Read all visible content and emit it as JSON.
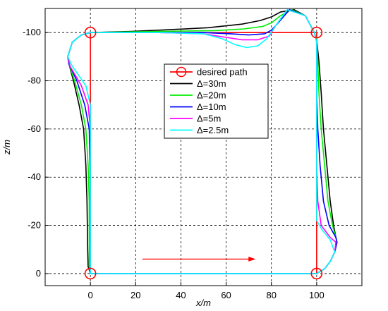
{
  "chart_data": {
    "type": "line",
    "xlabel": "x/m",
    "ylabel": "z/m",
    "xlim": [
      -20,
      120
    ],
    "ylim": [
      -5,
      110
    ],
    "y_axis_display": "inverted-negative",
    "x_ticks": [
      0,
      20,
      40,
      60,
      80,
      100
    ],
    "y_ticks": [
      0,
      20,
      40,
      60,
      80,
      100
    ],
    "x_tick_labels": [
      "0",
      "20",
      "40",
      "60",
      "80",
      "100"
    ],
    "y_tick_labels": [
      "0",
      "-20",
      "-40",
      "-60",
      "-80",
      "-100"
    ],
    "grid": true,
    "legend_position": "center",
    "desired_path": {
      "name": "desired path",
      "color": "#ff0000",
      "marker": "circle",
      "points": [
        [
          0,
          0
        ],
        [
          0,
          100
        ],
        [
          100,
          100
        ],
        [
          100,
          0
        ]
      ]
    },
    "direction_arrow": {
      "from": [
        23,
        6
      ],
      "to": [
        73,
        6
      ],
      "color": "#ff0000"
    },
    "series": [
      {
        "name": "Δ=30m",
        "color": "#000000",
        "points": [
          [
            0,
            100
          ],
          [
            18,
            100.5
          ],
          [
            35,
            101.2
          ],
          [
            52,
            102
          ],
          [
            67,
            103.5
          ],
          [
            75,
            105
          ],
          [
            80,
            106.5
          ],
          [
            84,
            108.5
          ],
          [
            90,
            109.5
          ],
          [
            95,
            107
          ],
          [
            99,
            100
          ],
          [
            100,
            97
          ],
          [
            101,
            88
          ],
          [
            102,
            75
          ],
          [
            103,
            60
          ],
          [
            104.5,
            45
          ],
          [
            106,
            30
          ],
          [
            107.5,
            20
          ],
          [
            108.5,
            15
          ],
          [
            109,
            13
          ],
          [
            108,
            9
          ],
          [
            106,
            5
          ],
          [
            103.5,
            2
          ],
          [
            100,
            0
          ],
          [
            50,
            0
          ],
          [
            0,
            0
          ],
          [
            -1,
            3
          ],
          [
            -1.2,
            10
          ],
          [
            -1.5,
            30
          ],
          [
            -2,
            45
          ],
          [
            -3,
            60
          ],
          [
            -5,
            70
          ],
          [
            -7.5,
            80
          ],
          [
            -9.5,
            87
          ],
          [
            -10,
            90
          ],
          [
            -8,
            96
          ],
          [
            -4,
            99
          ],
          [
            0,
            100
          ]
        ]
      },
      {
        "name": "Δ=20m",
        "color": "#00ee00",
        "points": [
          [
            0,
            100
          ],
          [
            20,
            100.3
          ],
          [
            40,
            100.6
          ],
          [
            55,
            100.8
          ],
          [
            68,
            101.5
          ],
          [
            76,
            102.5
          ],
          [
            80,
            104
          ],
          [
            84,
            107
          ],
          [
            89,
            109.5
          ],
          [
            95,
            107
          ],
          [
            99,
            100
          ],
          [
            100,
            97
          ],
          [
            100.5,
            88
          ],
          [
            101,
            75
          ],
          [
            102,
            60
          ],
          [
            103.5,
            45
          ],
          [
            105,
            30
          ],
          [
            107,
            20
          ],
          [
            108.5,
            15
          ],
          [
            109,
            13
          ],
          [
            108,
            9
          ],
          [
            106,
            5
          ],
          [
            103.5,
            2
          ],
          [
            100,
            0
          ],
          [
            50,
            0
          ],
          [
            0,
            0
          ],
          [
            -0.5,
            3
          ],
          [
            -0.5,
            10
          ],
          [
            -0.5,
            30
          ],
          [
            -1,
            45
          ],
          [
            -2,
            60
          ],
          [
            -4,
            70
          ],
          [
            -7,
            80
          ],
          [
            -9.5,
            87
          ],
          [
            -10,
            90
          ],
          [
            -8,
            96
          ],
          [
            -4,
            99
          ],
          [
            0,
            100
          ]
        ]
      },
      {
        "name": "Δ=10m",
        "color": "#0000ff",
        "points": [
          [
            0,
            100
          ],
          [
            30,
            100
          ],
          [
            50,
            100
          ],
          [
            62,
            99.5
          ],
          [
            70,
            99
          ],
          [
            77,
            99.5
          ],
          [
            80,
            101
          ],
          [
            83,
            104
          ],
          [
            88,
            109.5
          ],
          [
            95,
            107
          ],
          [
            99,
            100
          ],
          [
            100,
            96
          ],
          [
            100,
            88
          ],
          [
            100,
            75
          ],
          [
            100.5,
            60
          ],
          [
            101.5,
            45
          ],
          [
            103,
            30
          ],
          [
            105.5,
            20
          ],
          [
            108.5,
            15
          ],
          [
            109,
            13
          ],
          [
            108,
            9
          ],
          [
            106,
            5
          ],
          [
            103.5,
            2
          ],
          [
            100,
            0
          ],
          [
            50,
            0
          ],
          [
            0,
            0
          ],
          [
            0,
            3
          ],
          [
            0,
            10
          ],
          [
            0,
            30
          ],
          [
            -0.2,
            45
          ],
          [
            -0.5,
            60
          ],
          [
            -2.5,
            70
          ],
          [
            -6,
            80
          ],
          [
            -9.5,
            87
          ],
          [
            -10,
            90
          ],
          [
            -8,
            96
          ],
          [
            -4,
            99
          ],
          [
            0,
            100
          ]
        ]
      },
      {
        "name": "Δ=5m",
        "color": "#ff00ff",
        "points": [
          [
            0,
            100
          ],
          [
            30,
            100
          ],
          [
            50,
            99.5
          ],
          [
            60,
            98
          ],
          [
            67,
            97
          ],
          [
            74,
            97
          ],
          [
            79,
            98.5
          ],
          [
            82,
            103
          ],
          [
            87,
            109.5
          ],
          [
            95,
            107
          ],
          [
            99,
            100
          ],
          [
            100,
            96
          ],
          [
            100,
            88
          ],
          [
            100,
            75
          ],
          [
            100,
            60
          ],
          [
            100,
            45
          ],
          [
            100.5,
            30
          ],
          [
            102,
            20
          ],
          [
            106,
            15
          ],
          [
            108.5,
            13
          ],
          [
            108,
            9
          ],
          [
            106,
            5
          ],
          [
            103.5,
            2
          ],
          [
            100,
            0
          ],
          [
            50,
            0
          ],
          [
            0,
            0
          ],
          [
            0,
            3
          ],
          [
            0,
            10
          ],
          [
            0,
            30
          ],
          [
            0,
            45
          ],
          [
            0,
            60
          ],
          [
            -1,
            70
          ],
          [
            -4,
            78
          ],
          [
            -9,
            86
          ],
          [
            -10,
            90
          ],
          [
            -8,
            96
          ],
          [
            -4,
            99
          ],
          [
            0,
            100
          ]
        ]
      },
      {
        "name": "Δ=2.5m",
        "color": "#00ffff",
        "points": [
          [
            0,
            100
          ],
          [
            30,
            100
          ],
          [
            50,
            99.5
          ],
          [
            58,
            97.5
          ],
          [
            64,
            95
          ],
          [
            69,
            93.8
          ],
          [
            74,
            94.5
          ],
          [
            78,
            97.5
          ],
          [
            82,
            103
          ],
          [
            87,
            109.5
          ],
          [
            95,
            107
          ],
          [
            99,
            100
          ],
          [
            100,
            96
          ],
          [
            100,
            88
          ],
          [
            100,
            75
          ],
          [
            100,
            60
          ],
          [
            100,
            45
          ],
          [
            100,
            30
          ],
          [
            100,
            22
          ],
          [
            102.5,
            18
          ],
          [
            106,
            14
          ],
          [
            108,
            9
          ],
          [
            106,
            5
          ],
          [
            103.5,
            2
          ],
          [
            100,
            0
          ],
          [
            50,
            0
          ],
          [
            0,
            0
          ],
          [
            0,
            3
          ],
          [
            0,
            10
          ],
          [
            0,
            30
          ],
          [
            0,
            45
          ],
          [
            0,
            60
          ],
          [
            0,
            70
          ],
          [
            -2,
            78
          ],
          [
            -8,
            86
          ],
          [
            -10,
            90
          ],
          [
            -8,
            96
          ],
          [
            -4,
            99
          ],
          [
            0,
            100
          ]
        ]
      }
    ]
  }
}
